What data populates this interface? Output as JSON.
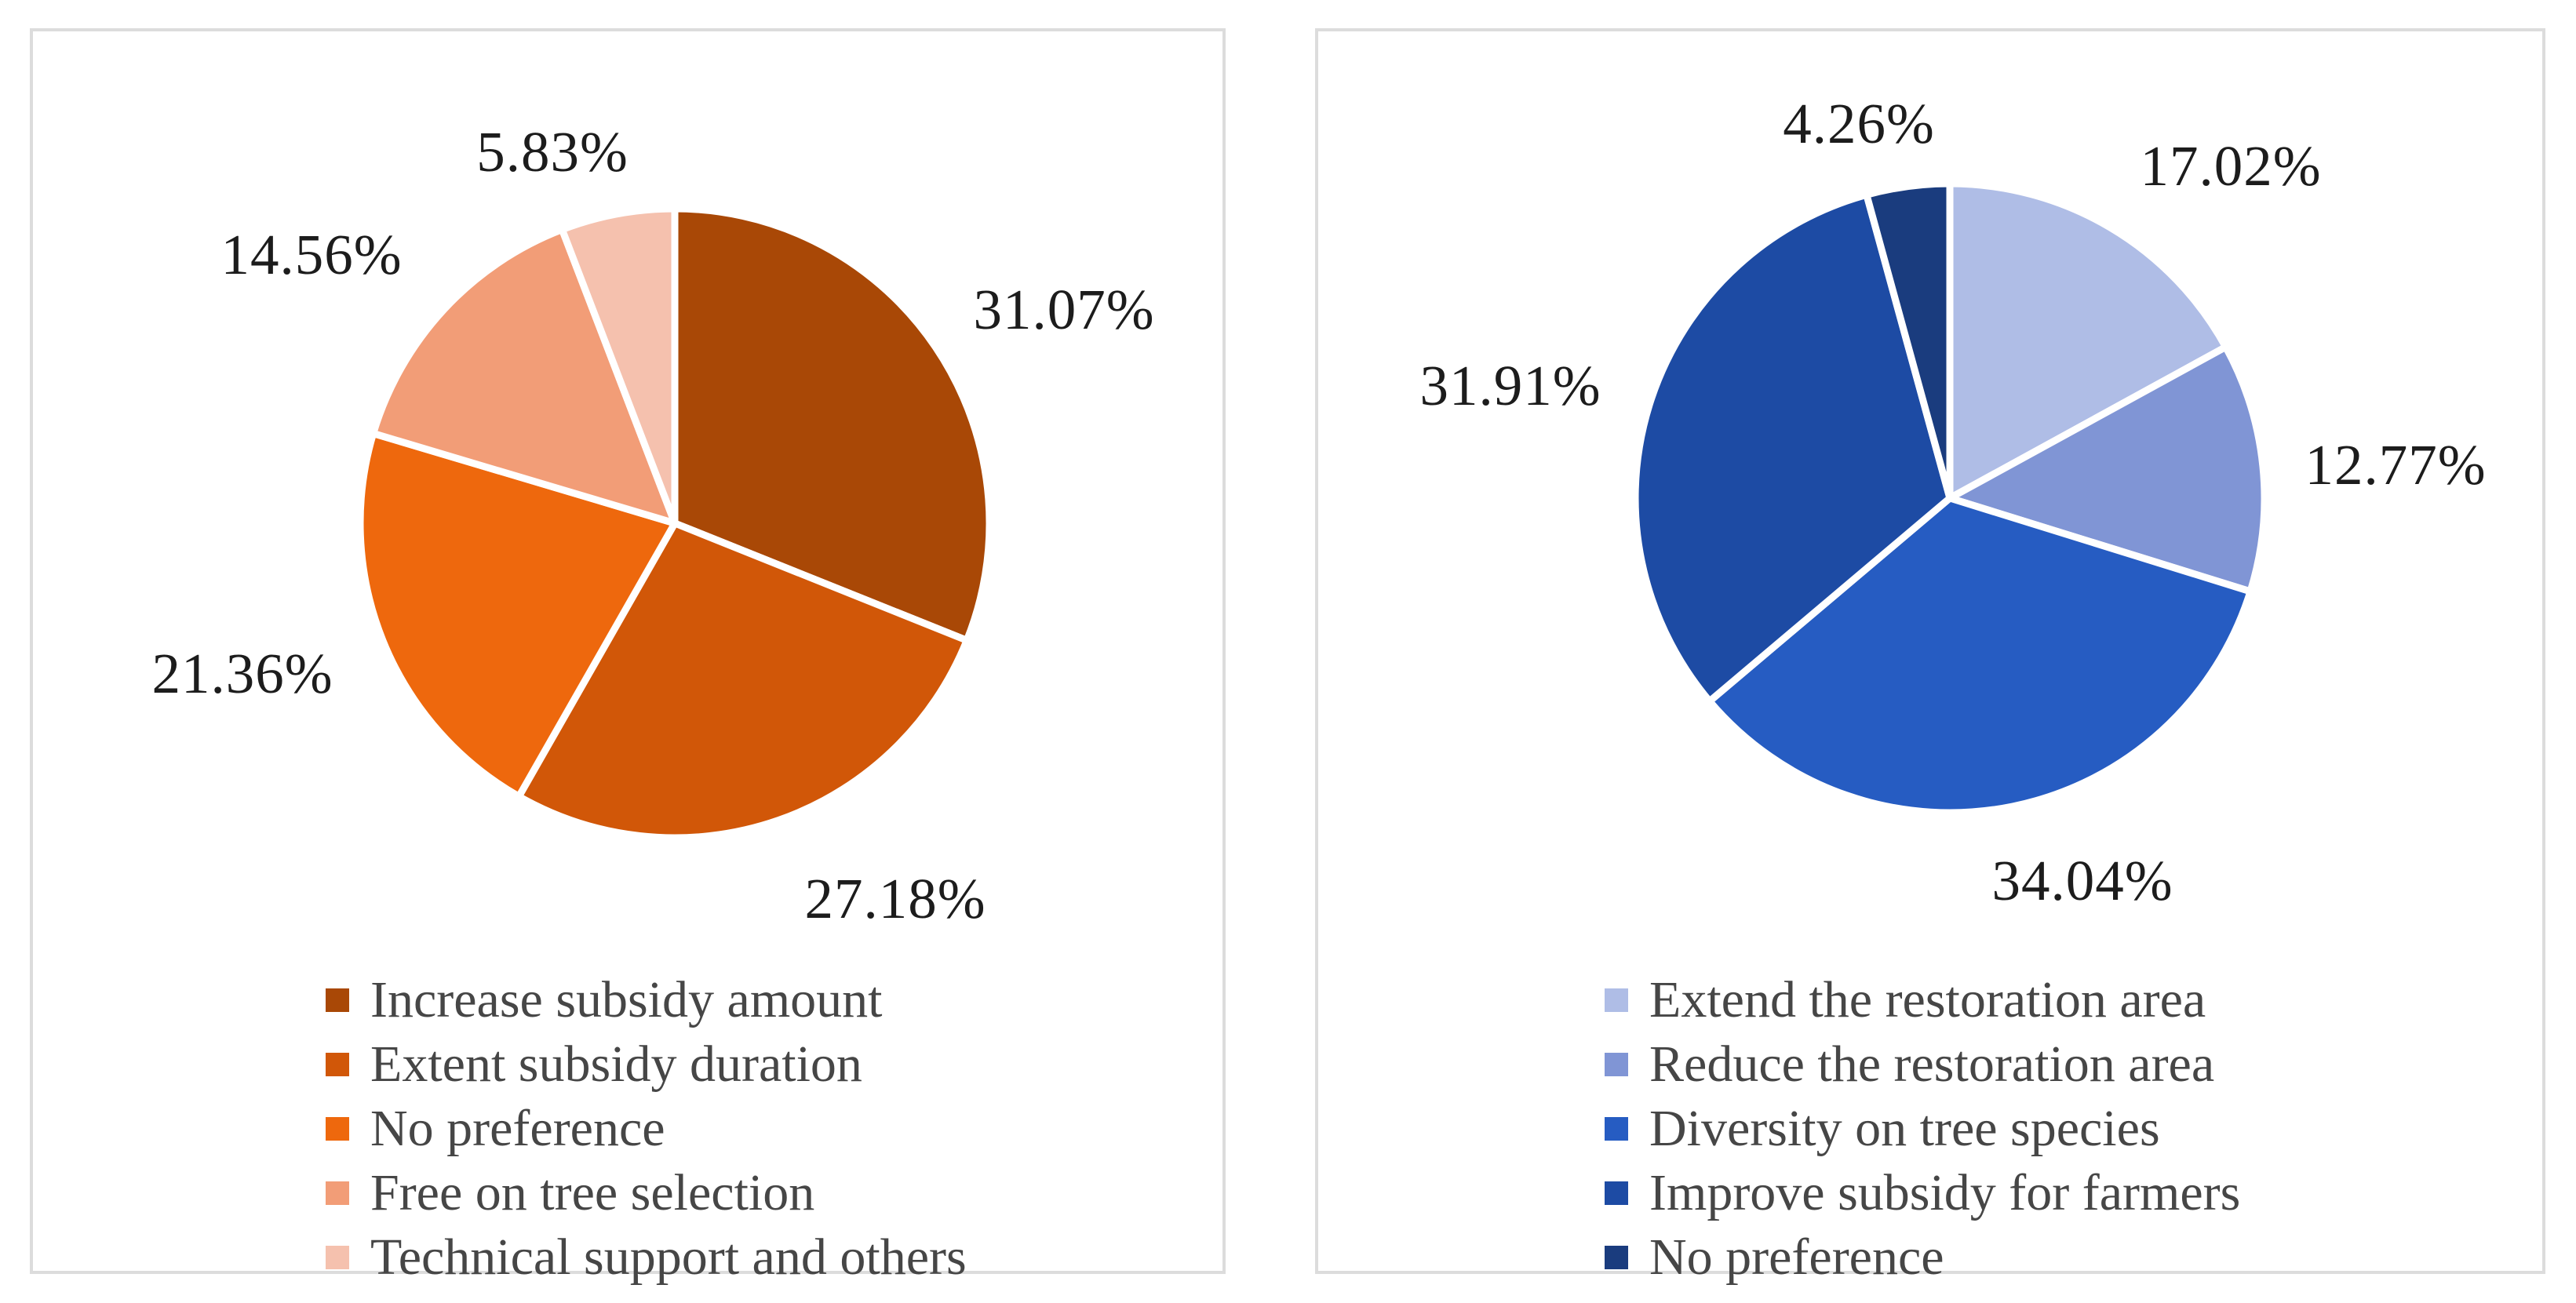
{
  "colors": {
    "background": "#ffffff",
    "panel_border": "#dcdcdc",
    "slice_stroke": "#ffffff",
    "percent_label_text": "#1c1c1c",
    "legend_text": "#464646"
  },
  "chart_data": [
    {
      "type": "pie",
      "title": "",
      "panel": "left",
      "palette": "orange-monochromatic",
      "start_angle": "12 o'clock, clockwise",
      "legend_position": "bottom",
      "slices": [
        {
          "label": "Increase subsidy amount",
          "value": 31.07,
          "display": "31.07%",
          "color": "#A94806"
        },
        {
          "label": "Extent subsidy duration",
          "value": 27.18,
          "display": "27.18%",
          "color": "#D15708"
        },
        {
          "label": "No preference",
          "value": 21.36,
          "display": "21.36%",
          "color": "#EE680D"
        },
        {
          "label": "Free on tree selection",
          "value": 14.56,
          "display": "14.56%",
          "color": "#F29D77"
        },
        {
          "label": "Technical support and others",
          "value": 5.83,
          "display": "5.83%",
          "color": "#F5C1AE"
        }
      ]
    },
    {
      "type": "pie",
      "title": "",
      "panel": "right",
      "palette": "blue-monochromatic",
      "start_angle": "12 o'clock, clockwise",
      "legend_position": "bottom",
      "slices": [
        {
          "label": "Extend the restoration area",
          "value": 17.02,
          "display": "17.02%",
          "color": "#AFBDE6"
        },
        {
          "label": "Reduce the restoration area",
          "value": 12.77,
          "display": "12.77%",
          "color": "#8095D5"
        },
        {
          "label": "Diversity on tree species",
          "value": 34.04,
          "display": "34.04%",
          "color": "#265CC2"
        },
        {
          "label": "Improve subsidy for farmers",
          "value": 31.91,
          "display": "31.91%",
          "color": "#1D4BA4"
        },
        {
          "label": "No preference",
          "value": 4.26,
          "display": "4.26%",
          "color": "#1A3C7E"
        }
      ]
    }
  ]
}
